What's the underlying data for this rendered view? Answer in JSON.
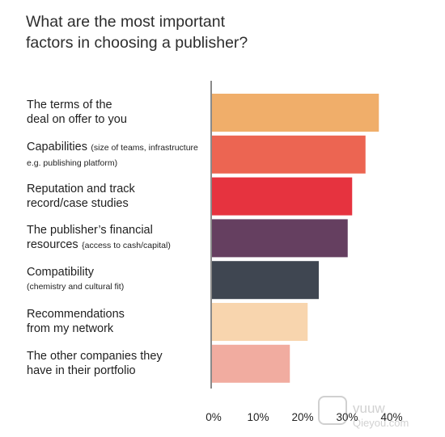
{
  "chart_data": {
    "type": "bar",
    "orientation": "horizontal",
    "title": "What are the most important factors in choosing a publisher?",
    "categories": [
      {
        "main": "The terms of the",
        "main2": "deal on offer to you",
        "sub": ""
      },
      {
        "main": "Capabilities",
        "main2": "",
        "sub": "(size of teams, infrastructure e.g. publishing platform)"
      },
      {
        "main": "Reputation and track",
        "main2": "record/case studies",
        "sub": ""
      },
      {
        "main": "The publisher’s financial",
        "main2": "resources",
        "sub": "{access to cash/capital)"
      },
      {
        "main": "Compatibility",
        "main2": "",
        "sub": "(chemistry and cultural fit)"
      },
      {
        "main": "Recommendations",
        "main2": "from my network",
        "sub": ""
      },
      {
        "main": "The other companies they",
        "main2": "have in their portfolio",
        "sub": ""
      }
    ],
    "values": [
      37.5,
      34.5,
      31.5,
      30.5,
      24,
      21.5,
      17.5
    ],
    "colors": [
      "#f0ae6a",
      "#ec6552",
      "#e6333f",
      "#653f60",
      "#3f4651",
      "#f8d5ae",
      "#f1aca0"
    ],
    "xlim": [
      0,
      40
    ],
    "x_ticks": [
      "0%",
      "10%",
      "20%",
      "30%",
      "40%"
    ],
    "xlabel": "",
    "ylabel": "",
    "grid": false,
    "legend": "none"
  },
  "watermark": {
    "line1": "vuuw",
    "line2": "Qieyou.com"
  }
}
